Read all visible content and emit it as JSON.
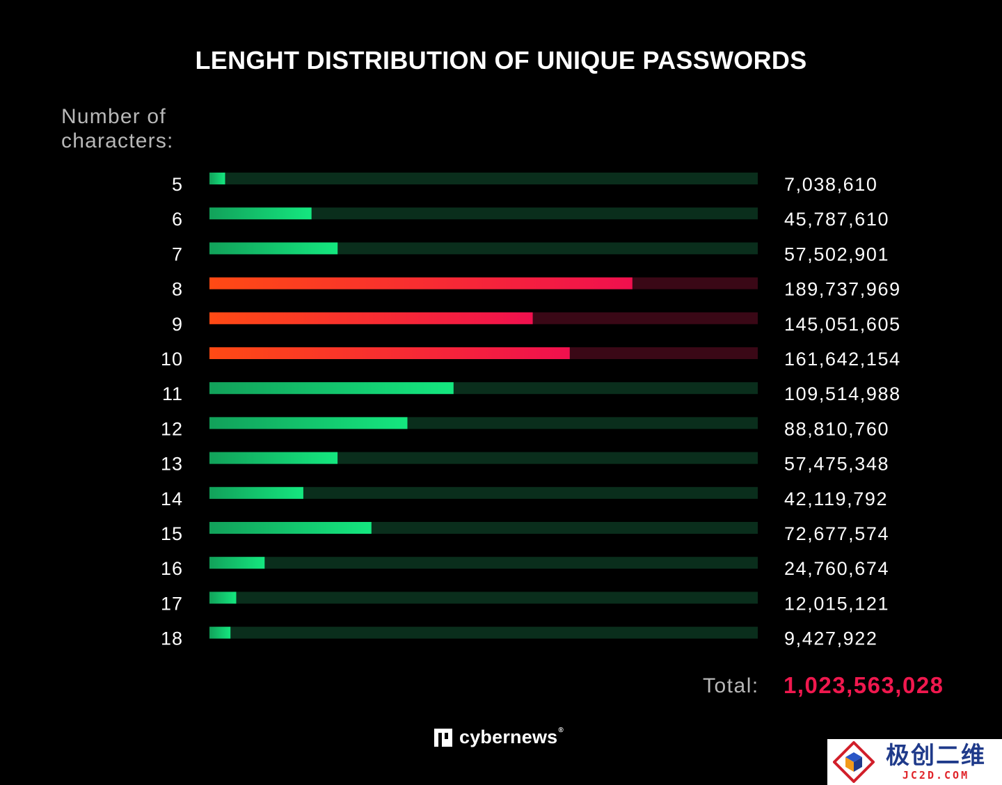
{
  "page": {
    "title": "LENGHT DISTRIBUTION OF UNIQUE PASSWORDS",
    "y_caption_line1": "Number of",
    "y_caption_line2": "characters:",
    "total_label": "Total:",
    "total_value": "1,023,563,028",
    "brand_name": "cybernews",
    "brand_mark": "®",
    "watermark_cn": "极创二维",
    "watermark_en": "JC2D.COM"
  },
  "colors": {
    "background": "#000000",
    "green_track": "#0a2e1c",
    "green_fill_start": "#12a15a",
    "green_fill_end": "#14e77f",
    "red_track": "#3a0816",
    "red_fill_start": "#ff4a14",
    "red_fill_end": "#f0104e",
    "total_value": "#f0184e"
  },
  "chart_data": {
    "type": "bar",
    "orientation": "horizontal",
    "title": "LENGHT DISTRIBUTION OF UNIQUE PASSWORDS",
    "ylabel": "Number of characters:",
    "categories": [
      "5",
      "6",
      "7",
      "8",
      "9",
      "10",
      "11",
      "12",
      "13",
      "14",
      "15",
      "16",
      "17",
      "18"
    ],
    "values": [
      7038610,
      45787610,
      57502901,
      189737969,
      145051605,
      161642154,
      109514988,
      88810760,
      57475348,
      42119792,
      72677574,
      24760674,
      12015121,
      9427922
    ],
    "value_labels": [
      "7,038,610",
      "45,787,610",
      "57,502,901",
      "189,737,969",
      "145,051,605",
      "161,642,154",
      "109,514,988",
      "88,810,760",
      "57,475,348",
      "42,119,792",
      "72,677,574",
      "24,760,674",
      "12,015,121",
      "9,427,922"
    ],
    "highlighted": [
      "8",
      "9",
      "10"
    ],
    "xlim": [
      0,
      246000000
    ],
    "grid": false,
    "legend": "none"
  }
}
